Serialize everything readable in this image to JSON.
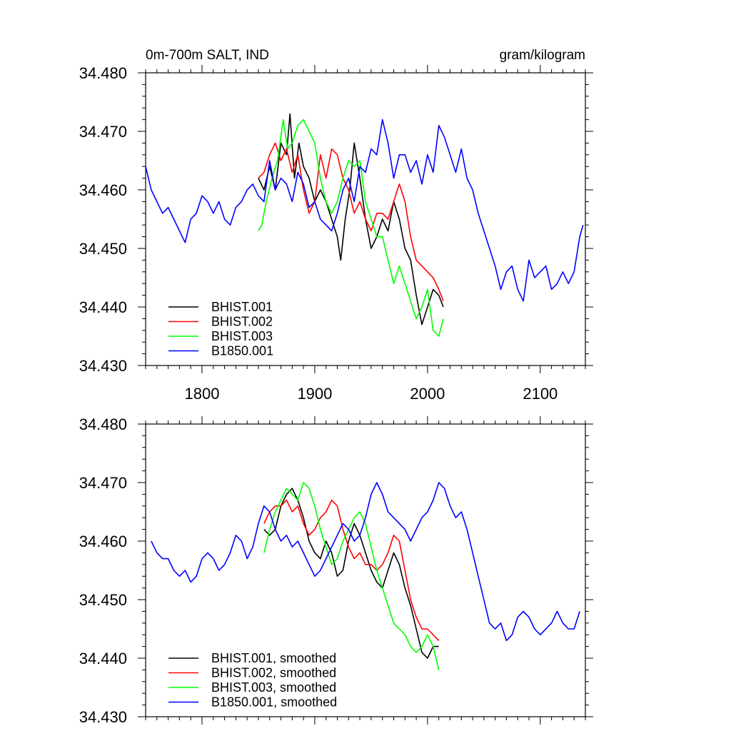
{
  "chart_data": [
    {
      "type": "line",
      "title_left": "0m-700m SALT, IND",
      "title_right": "gram/kilogram",
      "xlim": [
        1750,
        2140
      ],
      "ylim": [
        34.43,
        34.48
      ],
      "x_ticks": [
        1800,
        1900,
        2000,
        2100
      ],
      "x_tick_labels": [
        "1800",
        "1900",
        "2000",
        "2100"
      ],
      "y_ticks": [
        34.43,
        34.44,
        34.45,
        34.46,
        34.47,
        34.48
      ],
      "y_tick_labels": [
        "34.430",
        "34.440",
        "34.450",
        "34.460",
        "34.470",
        "34.480"
      ],
      "legend_position": "bottom-left",
      "series": [
        {
          "name": "BHIST.001",
          "color": "#000000",
          "x": [
            1850,
            1855,
            1860,
            1865,
            1870,
            1875,
            1878,
            1882,
            1886,
            1890,
            1895,
            1900,
            1905,
            1910,
            1915,
            1920,
            1923,
            1927,
            1931,
            1935,
            1940,
            1945,
            1950,
            1955,
            1960,
            1965,
            1970,
            1975,
            1980,
            1985,
            1990,
            1995,
            2000,
            2005,
            2010,
            2014
          ],
          "y": [
            34.462,
            34.46,
            34.464,
            34.46,
            34.468,
            34.466,
            34.473,
            34.462,
            34.468,
            34.464,
            34.462,
            34.458,
            34.46,
            34.458,
            34.455,
            34.452,
            34.448,
            34.455,
            34.46,
            34.468,
            34.462,
            34.455,
            34.45,
            34.452,
            34.455,
            34.453,
            34.458,
            34.455,
            34.45,
            34.448,
            34.442,
            34.437,
            34.44,
            34.443,
            34.442,
            34.44
          ]
        },
        {
          "name": "BHIST.002",
          "color": "#ff0000",
          "x": [
            1850,
            1855,
            1860,
            1865,
            1870,
            1875,
            1880,
            1885,
            1890,
            1895,
            1900,
            1905,
            1910,
            1915,
            1920,
            1925,
            1930,
            1935,
            1940,
            1945,
            1950,
            1955,
            1960,
            1965,
            1970,
            1975,
            1980,
            1985,
            1990,
            1995,
            2000,
            2005,
            2010,
            2014
          ],
          "y": [
            34.462,
            34.463,
            34.466,
            34.468,
            34.465,
            34.467,
            34.463,
            34.466,
            34.46,
            34.456,
            34.458,
            34.466,
            34.462,
            34.467,
            34.466,
            34.462,
            34.46,
            34.456,
            34.458,
            34.455,
            34.453,
            34.456,
            34.456,
            34.455,
            34.458,
            34.461,
            34.458,
            34.452,
            34.448,
            34.447,
            34.446,
            34.445,
            34.443,
            34.441
          ]
        },
        {
          "name": "BHIST.003",
          "color": "#00ff00",
          "x": [
            1850,
            1853,
            1857,
            1862,
            1867,
            1872,
            1876,
            1880,
            1885,
            1890,
            1895,
            1900,
            1905,
            1910,
            1915,
            1920,
            1925,
            1930,
            1935,
            1940,
            1945,
            1950,
            1955,
            1960,
            1965,
            1970,
            1975,
            1980,
            1985,
            1990,
            1995,
            2000,
            2005,
            2010,
            2014
          ],
          "y": [
            34.453,
            34.454,
            34.458,
            34.462,
            34.465,
            34.472,
            34.467,
            34.468,
            34.471,
            34.472,
            34.47,
            34.468,
            34.462,
            34.458,
            34.456,
            34.458,
            34.462,
            34.465,
            34.464,
            34.465,
            34.458,
            34.455,
            34.452,
            34.452,
            34.448,
            34.444,
            34.447,
            34.444,
            34.441,
            34.438,
            34.44,
            34.443,
            34.436,
            34.435,
            34.438
          ]
        },
        {
          "name": "B1850.001",
          "color": "#0000ff",
          "x": [
            1750,
            1755,
            1760,
            1765,
            1770,
            1775,
            1780,
            1785,
            1790,
            1795,
            1800,
            1805,
            1810,
            1815,
            1820,
            1825,
            1830,
            1835,
            1840,
            1845,
            1850,
            1855,
            1860,
            1865,
            1870,
            1875,
            1880,
            1885,
            1890,
            1895,
            1900,
            1905,
            1910,
            1915,
            1920,
            1925,
            1930,
            1935,
            1940,
            1945,
            1950,
            1955,
            1960,
            1965,
            1970,
            1975,
            1980,
            1985,
            1990,
            1995,
            2000,
            2005,
            2010,
            2015,
            2020,
            2025,
            2030,
            2035,
            2040,
            2045,
            2050,
            2055,
            2060,
            2065,
            2070,
            2075,
            2080,
            2085,
            2090,
            2095,
            2100,
            2105,
            2110,
            2115,
            2120,
            2125,
            2130,
            2135,
            2138
          ],
          "y": [
            34.464,
            34.46,
            34.458,
            34.456,
            34.457,
            34.455,
            34.453,
            34.451,
            34.455,
            34.456,
            34.459,
            34.458,
            34.456,
            34.458,
            34.455,
            34.454,
            34.457,
            34.458,
            34.46,
            34.461,
            34.459,
            34.458,
            34.465,
            34.46,
            34.462,
            34.461,
            34.458,
            34.463,
            34.461,
            34.457,
            34.458,
            34.455,
            34.454,
            34.453,
            34.456,
            34.46,
            34.462,
            34.458,
            34.464,
            34.463,
            34.467,
            34.466,
            34.472,
            34.468,
            34.462,
            34.466,
            34.466,
            34.463,
            34.465,
            34.461,
            34.466,
            34.463,
            34.471,
            34.469,
            34.466,
            34.463,
            34.467,
            34.462,
            34.46,
            34.456,
            34.453,
            34.45,
            34.447,
            34.443,
            34.446,
            34.447,
            34.443,
            34.441,
            34.448,
            34.445,
            34.446,
            34.447,
            34.443,
            34.444,
            34.446,
            34.444,
            34.446,
            34.452,
            34.454
          ]
        }
      ]
    },
    {
      "type": "line",
      "xlim": [
        1750,
        2140
      ],
      "ylim": [
        34.43,
        34.48
      ],
      "x_ticks": [
        1800,
        1900,
        2000,
        2100
      ],
      "y_ticks": [
        34.43,
        34.44,
        34.45,
        34.46,
        34.47,
        34.48
      ],
      "y_tick_labels": [
        "34.430",
        "34.440",
        "34.450",
        "34.460",
        "34.470",
        "34.480"
      ],
      "legend_position": "bottom-left",
      "series": [
        {
          "name": "BHIST.001, smoothed",
          "color": "#000000",
          "x": [
            1855,
            1860,
            1865,
            1870,
            1875,
            1880,
            1885,
            1890,
            1895,
            1900,
            1905,
            1910,
            1915,
            1920,
            1925,
            1930,
            1935,
            1940,
            1945,
            1950,
            1955,
            1960,
            1965,
            1970,
            1975,
            1980,
            1985,
            1990,
            1995,
            2000,
            2005,
            2010
          ],
          "y": [
            34.462,
            34.461,
            34.462,
            34.466,
            34.468,
            34.469,
            34.467,
            34.464,
            34.46,
            34.458,
            34.457,
            34.46,
            34.458,
            34.454,
            34.455,
            34.46,
            34.463,
            34.461,
            34.458,
            34.455,
            34.453,
            34.452,
            34.455,
            34.458,
            34.456,
            34.452,
            34.449,
            34.445,
            34.441,
            34.44,
            34.442,
            34.442
          ]
        },
        {
          "name": "BHIST.002, smoothed",
          "color": "#ff0000",
          "x": [
            1855,
            1860,
            1865,
            1870,
            1875,
            1880,
            1885,
            1890,
            1895,
            1900,
            1905,
            1910,
            1915,
            1920,
            1925,
            1930,
            1935,
            1940,
            1945,
            1950,
            1955,
            1960,
            1965,
            1970,
            1975,
            1980,
            1985,
            1990,
            1995,
            2000,
            2005,
            2010
          ],
          "y": [
            34.463,
            34.465,
            34.466,
            34.466,
            34.467,
            34.465,
            34.466,
            34.463,
            34.461,
            34.462,
            34.464,
            34.465,
            34.467,
            34.466,
            34.462,
            34.459,
            34.457,
            34.458,
            34.456,
            34.456,
            34.455,
            34.456,
            34.458,
            34.461,
            34.46,
            34.455,
            34.45,
            34.447,
            34.445,
            34.445,
            34.444,
            34.443
          ]
        },
        {
          "name": "BHIST.003, smoothed",
          "color": "#00ff00",
          "x": [
            1855,
            1860,
            1865,
            1870,
            1875,
            1880,
            1885,
            1890,
            1895,
            1900,
            1905,
            1910,
            1915,
            1920,
            1925,
            1930,
            1935,
            1940,
            1945,
            1950,
            1955,
            1960,
            1965,
            1970,
            1975,
            1980,
            1985,
            1990,
            1995,
            2000,
            2005,
            2010
          ],
          "y": [
            34.458,
            34.462,
            34.465,
            34.467,
            34.469,
            34.468,
            34.467,
            34.47,
            34.469,
            34.466,
            34.462,
            34.459,
            34.456,
            34.457,
            34.46,
            34.462,
            34.464,
            34.465,
            34.463,
            34.459,
            34.455,
            34.452,
            34.449,
            34.446,
            34.445,
            34.444,
            34.442,
            34.441,
            34.442,
            34.444,
            34.442,
            34.438
          ]
        },
        {
          "name": "B1850.001, smoothed",
          "color": "#0000ff",
          "x": [
            1755,
            1760,
            1765,
            1770,
            1775,
            1780,
            1785,
            1790,
            1795,
            1800,
            1805,
            1810,
            1815,
            1820,
            1825,
            1830,
            1835,
            1840,
            1845,
            1850,
            1855,
            1860,
            1865,
            1870,
            1875,
            1880,
            1885,
            1890,
            1895,
            1900,
            1905,
            1910,
            1915,
            1920,
            1925,
            1930,
            1935,
            1940,
            1945,
            1950,
            1955,
            1960,
            1965,
            1970,
            1975,
            1980,
            1985,
            1990,
            1995,
            2000,
            2005,
            2010,
            2015,
            2020,
            2025,
            2030,
            2035,
            2040,
            2045,
            2050,
            2055,
            2060,
            2065,
            2070,
            2075,
            2080,
            2085,
            2090,
            2095,
            2100,
            2105,
            2110,
            2115,
            2120,
            2125,
            2130,
            2135
          ],
          "y": [
            34.46,
            34.458,
            34.457,
            34.457,
            34.455,
            34.454,
            34.455,
            34.453,
            34.454,
            34.457,
            34.458,
            34.457,
            34.455,
            34.456,
            34.458,
            34.461,
            34.46,
            34.457,
            34.459,
            34.463,
            34.466,
            34.465,
            34.462,
            34.46,
            34.461,
            34.459,
            34.46,
            34.458,
            34.456,
            34.454,
            34.455,
            34.457,
            34.459,
            34.461,
            34.463,
            34.462,
            34.46,
            34.461,
            34.464,
            34.468,
            34.47,
            34.468,
            34.465,
            34.464,
            34.463,
            34.462,
            34.46,
            34.462,
            34.464,
            34.465,
            34.467,
            34.47,
            34.469,
            34.466,
            34.464,
            34.465,
            34.462,
            34.458,
            34.454,
            34.45,
            34.446,
            34.445,
            34.446,
            34.443,
            34.444,
            34.447,
            34.448,
            34.447,
            34.445,
            34.444,
            34.445,
            34.446,
            34.448,
            34.446,
            34.445,
            34.445,
            34.448
          ]
        }
      ]
    }
  ]
}
